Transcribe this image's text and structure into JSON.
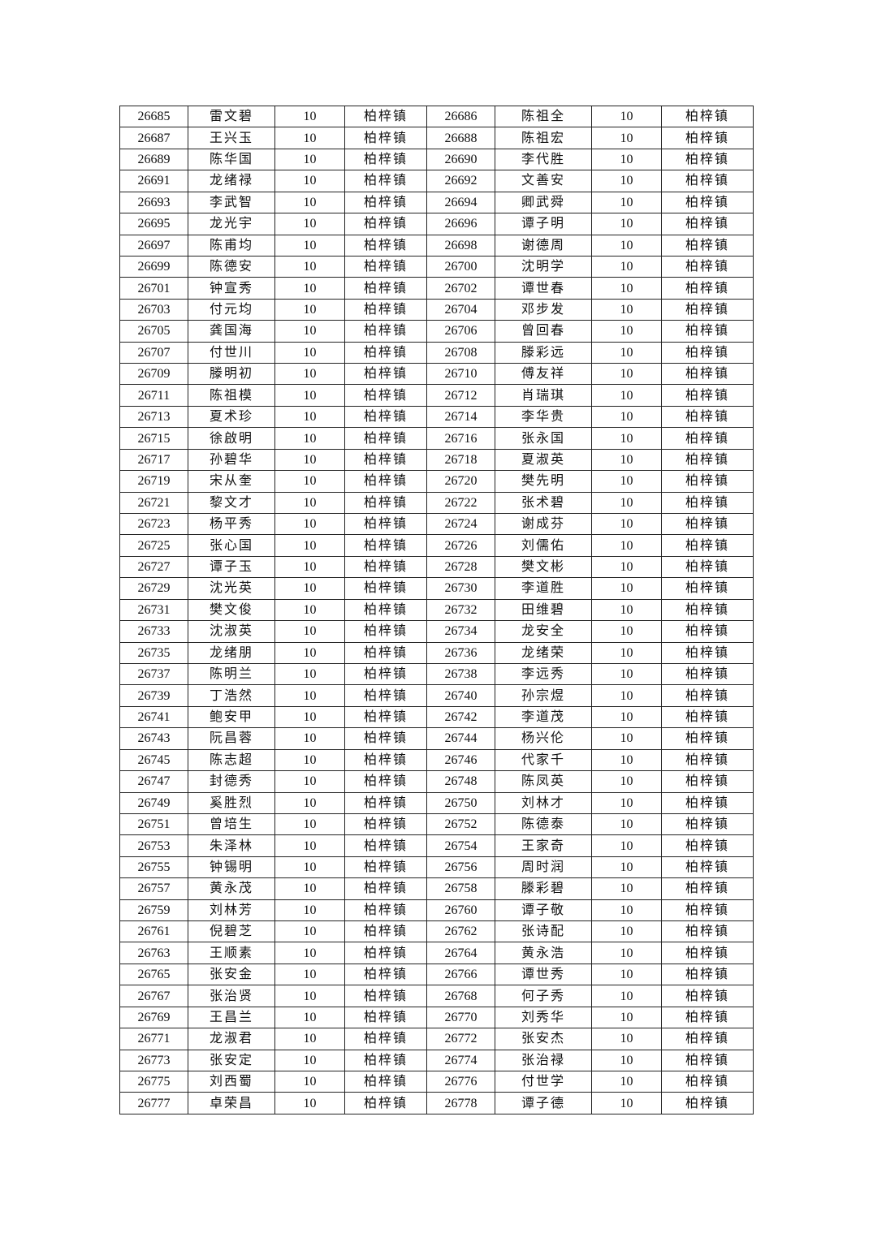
{
  "table": {
    "rows": [
      [
        "26685",
        "雷文碧",
        "10",
        "柏梓镇",
        "26686",
        "陈祖全",
        "10",
        "柏梓镇"
      ],
      [
        "26687",
        "王兴玉",
        "10",
        "柏梓镇",
        "26688",
        "陈祖宏",
        "10",
        "柏梓镇"
      ],
      [
        "26689",
        "陈华国",
        "10",
        "柏梓镇",
        "26690",
        "李代胜",
        "10",
        "柏梓镇"
      ],
      [
        "26691",
        "龙绪禄",
        "10",
        "柏梓镇",
        "26692",
        "文善安",
        "10",
        "柏梓镇"
      ],
      [
        "26693",
        "李武智",
        "10",
        "柏梓镇",
        "26694",
        "卿武舜",
        "10",
        "柏梓镇"
      ],
      [
        "26695",
        "龙光宇",
        "10",
        "柏梓镇",
        "26696",
        "谭子明",
        "10",
        "柏梓镇"
      ],
      [
        "26697",
        "陈甫均",
        "10",
        "柏梓镇",
        "26698",
        "谢德周",
        "10",
        "柏梓镇"
      ],
      [
        "26699",
        "陈德安",
        "10",
        "柏梓镇",
        "26700",
        "沈明学",
        "10",
        "柏梓镇"
      ],
      [
        "26701",
        "钟宣秀",
        "10",
        "柏梓镇",
        "26702",
        "谭世春",
        "10",
        "柏梓镇"
      ],
      [
        "26703",
        "付元均",
        "10",
        "柏梓镇",
        "26704",
        "邓步发",
        "10",
        "柏梓镇"
      ],
      [
        "26705",
        "龚国海",
        "10",
        "柏梓镇",
        "26706",
        "曾回春",
        "10",
        "柏梓镇"
      ],
      [
        "26707",
        "付世川",
        "10",
        "柏梓镇",
        "26708",
        "滕彩远",
        "10",
        "柏梓镇"
      ],
      [
        "26709",
        "滕明初",
        "10",
        "柏梓镇",
        "26710",
        "傅友祥",
        "10",
        "柏梓镇"
      ],
      [
        "26711",
        "陈祖模",
        "10",
        "柏梓镇",
        "26712",
        "肖瑞琪",
        "10",
        "柏梓镇"
      ],
      [
        "26713",
        "夏术珍",
        "10",
        "柏梓镇",
        "26714",
        "李华贵",
        "10",
        "柏梓镇"
      ],
      [
        "26715",
        "徐啟明",
        "10",
        "柏梓镇",
        "26716",
        "张永国",
        "10",
        "柏梓镇"
      ],
      [
        "26717",
        "孙碧华",
        "10",
        "柏梓镇",
        "26718",
        "夏淑英",
        "10",
        "柏梓镇"
      ],
      [
        "26719",
        "宋从奎",
        "10",
        "柏梓镇",
        "26720",
        "樊先明",
        "10",
        "柏梓镇"
      ],
      [
        "26721",
        "黎文才",
        "10",
        "柏梓镇",
        "26722",
        "张术碧",
        "10",
        "柏梓镇"
      ],
      [
        "26723",
        "杨平秀",
        "10",
        "柏梓镇",
        "26724",
        "谢成芬",
        "10",
        "柏梓镇"
      ],
      [
        "26725",
        "张心国",
        "10",
        "柏梓镇",
        "26726",
        "刘儒佑",
        "10",
        "柏梓镇"
      ],
      [
        "26727",
        "谭子玉",
        "10",
        "柏梓镇",
        "26728",
        "樊文彬",
        "10",
        "柏梓镇"
      ],
      [
        "26729",
        "沈光英",
        "10",
        "柏梓镇",
        "26730",
        "李道胜",
        "10",
        "柏梓镇"
      ],
      [
        "26731",
        "樊文俊",
        "10",
        "柏梓镇",
        "26732",
        "田维碧",
        "10",
        "柏梓镇"
      ],
      [
        "26733",
        "沈淑英",
        "10",
        "柏梓镇",
        "26734",
        "龙安全",
        "10",
        "柏梓镇"
      ],
      [
        "26735",
        "龙绪朋",
        "10",
        "柏梓镇",
        "26736",
        "龙绪荣",
        "10",
        "柏梓镇"
      ],
      [
        "26737",
        "陈明兰",
        "10",
        "柏梓镇",
        "26738",
        "李远秀",
        "10",
        "柏梓镇"
      ],
      [
        "26739",
        "丁浩然",
        "10",
        "柏梓镇",
        "26740",
        "孙宗煜",
        "10",
        "柏梓镇"
      ],
      [
        "26741",
        "鲍安甲",
        "10",
        "柏梓镇",
        "26742",
        "李道茂",
        "10",
        "柏梓镇"
      ],
      [
        "26743",
        "阮昌蓉",
        "10",
        "柏梓镇",
        "26744",
        "杨兴伦",
        "10",
        "柏梓镇"
      ],
      [
        "26745",
        "陈志超",
        "10",
        "柏梓镇",
        "26746",
        "代家千",
        "10",
        "柏梓镇"
      ],
      [
        "26747",
        "封德秀",
        "10",
        "柏梓镇",
        "26748",
        "陈凤英",
        "10",
        "柏梓镇"
      ],
      [
        "26749",
        "奚胜烈",
        "10",
        "柏梓镇",
        "26750",
        "刘林才",
        "10",
        "柏梓镇"
      ],
      [
        "26751",
        "曾培生",
        "10",
        "柏梓镇",
        "26752",
        "陈德泰",
        "10",
        "柏梓镇"
      ],
      [
        "26753",
        "朱泽林",
        "10",
        "柏梓镇",
        "26754",
        "王家奇",
        "10",
        "柏梓镇"
      ],
      [
        "26755",
        "钟锡明",
        "10",
        "柏梓镇",
        "26756",
        "周时润",
        "10",
        "柏梓镇"
      ],
      [
        "26757",
        "黄永茂",
        "10",
        "柏梓镇",
        "26758",
        "滕彩碧",
        "10",
        "柏梓镇"
      ],
      [
        "26759",
        "刘林芳",
        "10",
        "柏梓镇",
        "26760",
        "谭子敬",
        "10",
        "柏梓镇"
      ],
      [
        "26761",
        "倪碧芝",
        "10",
        "柏梓镇",
        "26762",
        "张诗配",
        "10",
        "柏梓镇"
      ],
      [
        "26763",
        "王顺素",
        "10",
        "柏梓镇",
        "26764",
        "黄永浩",
        "10",
        "柏梓镇"
      ],
      [
        "26765",
        "张安金",
        "10",
        "柏梓镇",
        "26766",
        "谭世秀",
        "10",
        "柏梓镇"
      ],
      [
        "26767",
        "张治贤",
        "10",
        "柏梓镇",
        "26768",
        "何子秀",
        "10",
        "柏梓镇"
      ],
      [
        "26769",
        "王昌兰",
        "10",
        "柏梓镇",
        "26770",
        "刘秀华",
        "10",
        "柏梓镇"
      ],
      [
        "26771",
        "龙淑君",
        "10",
        "柏梓镇",
        "26772",
        "张安杰",
        "10",
        "柏梓镇"
      ],
      [
        "26773",
        "张安定",
        "10",
        "柏梓镇",
        "26774",
        "张治禄",
        "10",
        "柏梓镇"
      ],
      [
        "26775",
        "刘西蜀",
        "10",
        "柏梓镇",
        "26776",
        "付世学",
        "10",
        "柏梓镇"
      ],
      [
        "26777",
        "卓荣昌",
        "10",
        "柏梓镇",
        "26778",
        "谭子德",
        "10",
        "柏梓镇"
      ]
    ]
  }
}
